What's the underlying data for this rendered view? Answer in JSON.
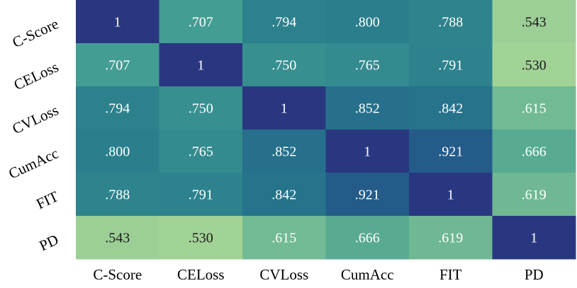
{
  "chart_data": {
    "type": "heatmap",
    "title": "",
    "xlabel": "",
    "ylabel": "",
    "x_categories": [
      "C-Score",
      "CELoss",
      "CVLoss",
      "CumAcc",
      "FIT",
      "PD"
    ],
    "y_categories": [
      "C-Score",
      "CELoss",
      "CVLoss",
      "CumAcc",
      "FIT",
      "PD"
    ],
    "values": [
      [
        1,
        0.707,
        0.794,
        0.8,
        0.788,
        0.543
      ],
      [
        0.707,
        1,
        0.75,
        0.765,
        0.791,
        0.53
      ],
      [
        0.794,
        0.75,
        1,
        0.852,
        0.842,
        0.615
      ],
      [
        0.8,
        0.765,
        0.852,
        1,
        0.921,
        0.666
      ],
      [
        0.788,
        0.791,
        0.842,
        0.921,
        1,
        0.619
      ],
      [
        0.543,
        0.53,
        0.615,
        0.666,
        0.619,
        1
      ]
    ],
    "cell_labels": [
      [
        "1",
        ".707",
        ".794",
        ".800",
        ".788",
        ".543"
      ],
      [
        ".707",
        "1",
        ".750",
        ".765",
        ".791",
        ".530"
      ],
      [
        ".794",
        ".750",
        "1",
        ".852",
        ".842",
        ".615"
      ],
      [
        ".800",
        ".765",
        ".852",
        "1",
        ".921",
        ".666"
      ],
      [
        ".788",
        ".791",
        ".842",
        ".921",
        "1",
        ".619"
      ],
      [
        ".543",
        ".530",
        ".615",
        ".666",
        ".619",
        "1"
      ]
    ],
    "colormap": "crest",
    "color_stops": [
      "#a2d396",
      "#6cb793",
      "#3f9a93",
      "#287b8b",
      "#23628b",
      "#293780"
    ],
    "value_range": [
      0.53,
      1
    ],
    "colorbar": false,
    "grid": false
  }
}
